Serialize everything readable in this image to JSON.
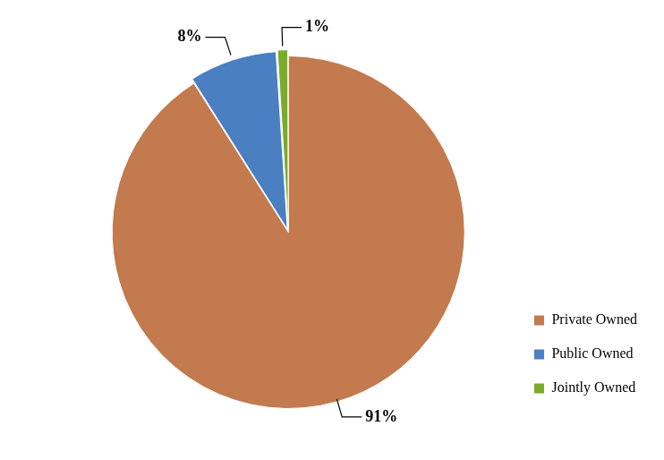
{
  "chart_data": {
    "type": "pie",
    "categories": [
      "Private Owned",
      "Public Owned",
      "Jointly Owned"
    ],
    "values": [
      91,
      8,
      1
    ],
    "value_labels": [
      "91%",
      "8%",
      "1%"
    ],
    "colors": [
      "#c27a4e",
      "#4a7fc1",
      "#7aab2a"
    ],
    "data_labels": true,
    "legend": "right"
  }
}
